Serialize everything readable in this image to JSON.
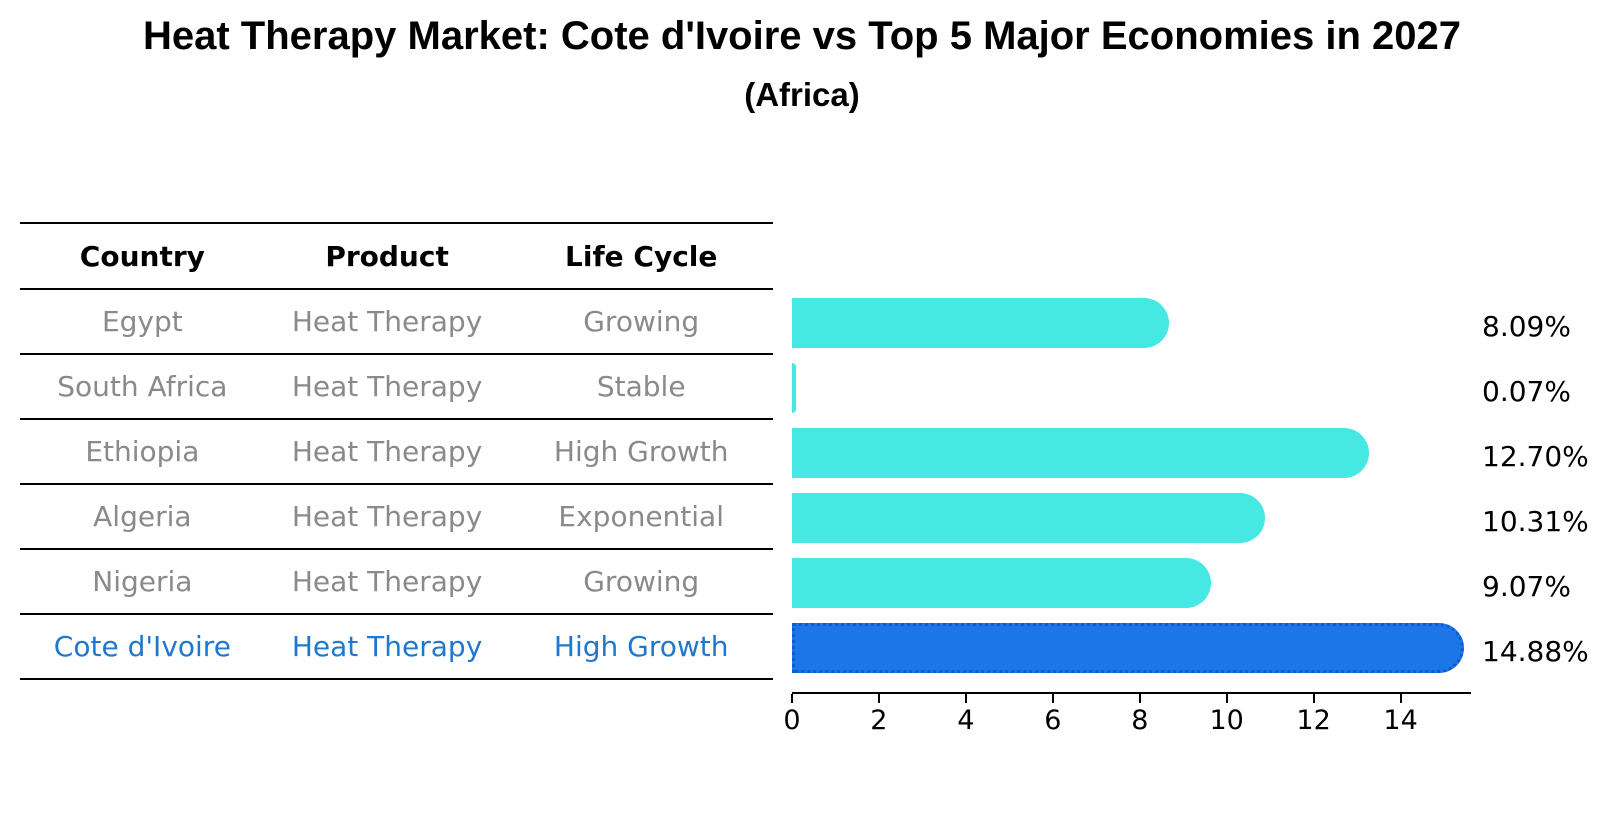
{
  "title": "Heat Therapy Market: Cote d'Ivoire vs Top 5 Major Economies in 2027",
  "subtitle": "(Africa)",
  "table": {
    "headers": [
      "Country",
      "Product",
      "Life Cycle"
    ],
    "rows": [
      {
        "country": "Egypt",
        "product": "Heat Therapy",
        "life_cycle": "Growing",
        "highlight": false
      },
      {
        "country": "South Africa",
        "product": "Heat Therapy",
        "life_cycle": "Stable",
        "highlight": false
      },
      {
        "country": "Ethiopia",
        "product": "Heat Therapy",
        "life_cycle": "High Growth",
        "highlight": false
      },
      {
        "country": "Algeria",
        "product": "Heat Therapy",
        "life_cycle": "Exponential",
        "highlight": false
      },
      {
        "country": "Nigeria",
        "product": "Heat Therapy",
        "life_cycle": "Growing",
        "highlight": false
      },
      {
        "country": "Cote d'Ivoire",
        "product": "Heat Therapy",
        "life_cycle": "High Growth",
        "highlight": true
      }
    ]
  },
  "chart_data": {
    "type": "bar",
    "orientation": "horizontal",
    "title": "Heat Therapy Market: Cote d'Ivoire vs Top 5 Major Economies in 2027 (Africa)",
    "categories": [
      "Egypt",
      "South Africa",
      "Ethiopia",
      "Algeria",
      "Nigeria",
      "Cote d'Ivoire"
    ],
    "values": [
      8.09,
      0.07,
      12.7,
      10.31,
      9.07,
      14.88
    ],
    "value_labels": [
      "8.09%",
      "0.07%",
      "12.70%",
      "10.31%",
      "9.07%",
      "14.88%"
    ],
    "x_ticks": [
      0,
      2,
      4,
      6,
      8,
      10,
      12,
      14
    ],
    "xlim": [
      0,
      15.62
    ],
    "grid": false,
    "legend": false,
    "highlight_index": 5
  },
  "colors": {
    "bar": "#45e8e3",
    "highlight_bar": "#1c76e8",
    "highlight_border": "#1359cf",
    "table_text": "#8a8a8a",
    "highlight_text": "#1e78d0",
    "axis": "#000000",
    "background": "#ffffff"
  }
}
